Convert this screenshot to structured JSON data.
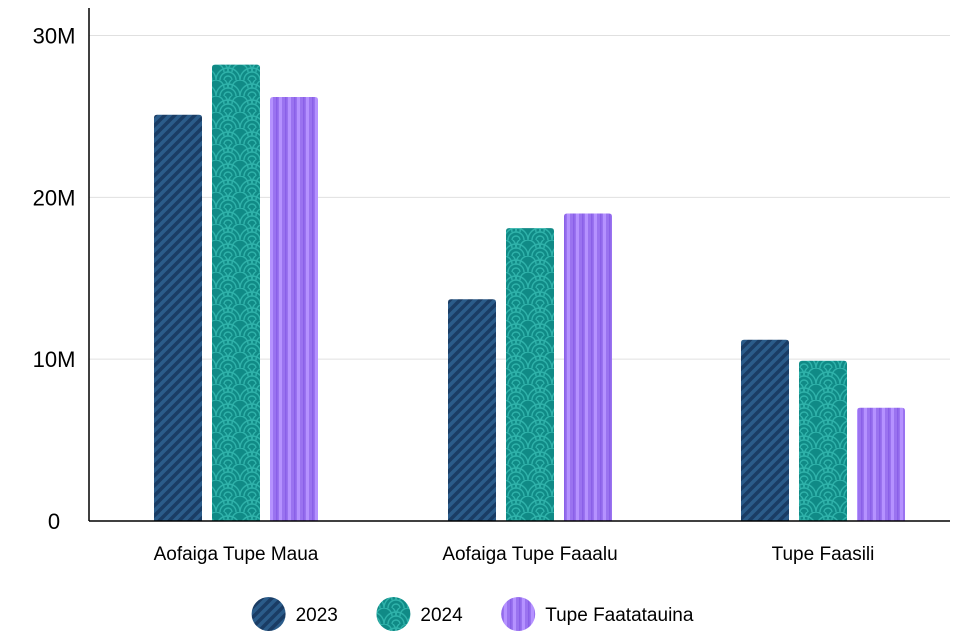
{
  "chart_data": {
    "type": "bar",
    "categories": [
      "Aofaiga Tupe Maua",
      "Aofaiga Tupe Faaalu",
      "Tupe Faasili"
    ],
    "series": [
      {
        "name": "2023",
        "values": [
          25100000,
          13700000,
          11200000
        ],
        "color": "#2b5c8a",
        "pattern": "diagonal-stripes"
      },
      {
        "name": "2024",
        "values": [
          28200000,
          18100000,
          9900000
        ],
        "color": "#108a86",
        "pattern": "scales"
      },
      {
        "name": "Tupe Faatatauina",
        "values": [
          26200000,
          19000000,
          7000000
        ],
        "color": "#9a73f0",
        "pattern": "vertical-stripes"
      }
    ],
    "y_ticks": [
      {
        "value": 0,
        "label": "0"
      },
      {
        "value": 10000000,
        "label": "10M"
      },
      {
        "value": 20000000,
        "label": "20M"
      },
      {
        "value": 30000000,
        "label": "30M"
      }
    ],
    "ylim": [
      0,
      31700000
    ],
    "grid": true,
    "legend": "bottom-center",
    "title": "",
    "xlabel": "",
    "ylabel": ""
  }
}
